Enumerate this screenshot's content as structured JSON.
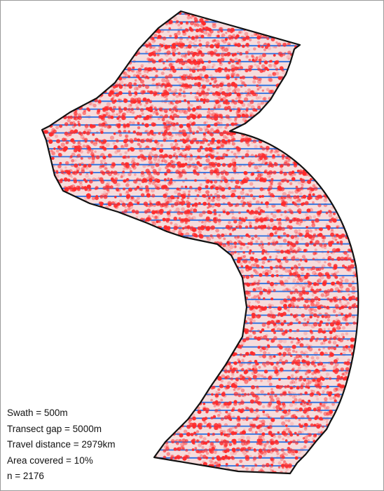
{
  "map": {
    "colors": {
      "transect_line": "#2a6fe0",
      "sample_point": "#ff2a2a",
      "boundary": "#111111",
      "frame_border": "#9a9a9a"
    },
    "legend": {
      "swath": "Swath = 500m",
      "transect_gap": "Transect gap = 5000m",
      "travel_distance": "Travel distance = 2979km",
      "area_covered": "Area covered = 10%",
      "n": "n = 2176"
    }
  }
}
